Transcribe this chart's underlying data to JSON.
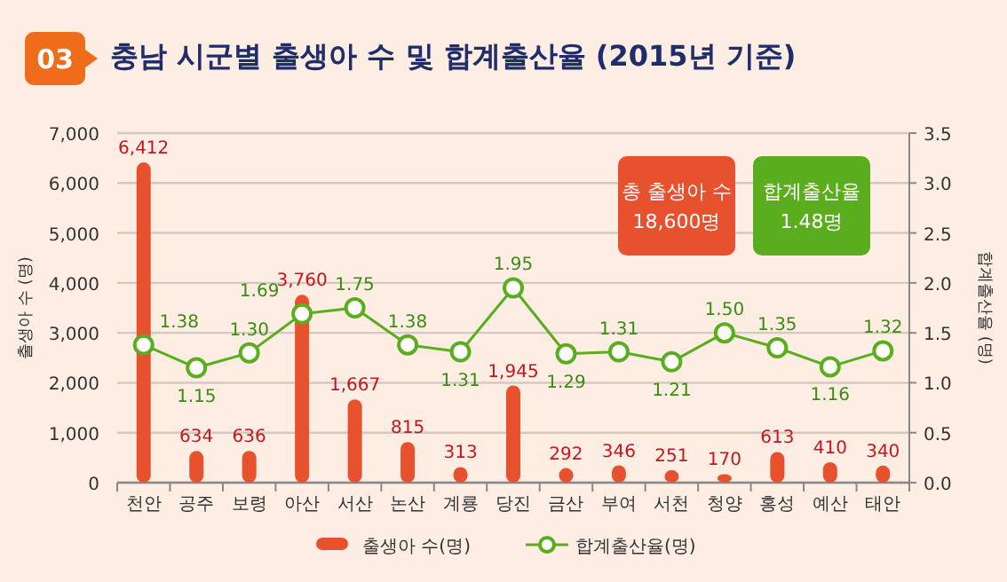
{
  "chart_data": {
    "type": "bar",
    "title": "충남 시군별 출생아 수 및 합계출산율 (2015년 기준)",
    "ylabel": "출생아 수 (명)",
    "y2label": "합계출산율 (명)",
    "categories": [
      "천안",
      "공주",
      "보령",
      "아산",
      "서산",
      "논산",
      "계룡",
      "당진",
      "금산",
      "부여",
      "서천",
      "청양",
      "홍성",
      "예산",
      "태안"
    ],
    "series": [
      {
        "name": "출생아 수(명)",
        "color": "#e8512e",
        "values": [
          6412,
          634,
          636,
          3760,
          1667,
          815,
          313,
          1945,
          292,
          346,
          251,
          170,
          613,
          410,
          340
        ],
        "value_labels": [
          "6,412",
          "634",
          "636",
          "3,760",
          "1,667",
          "815",
          "313",
          "1,945",
          "292",
          "346",
          "251",
          "170",
          "613",
          "410",
          "340"
        ]
      },
      {
        "name": "합계출산율(명)",
        "type": "line",
        "axis": "y2",
        "color": "#5aae1e",
        "marker": "circle",
        "values": [
          1.38,
          1.15,
          1.3,
          1.69,
          1.75,
          1.38,
          1.31,
          1.95,
          1.29,
          1.31,
          1.21,
          1.5,
          1.35,
          1.16,
          1.32
        ],
        "value_labels": [
          "1.38",
          "1.15",
          "1.30",
          "1.69",
          "1.75",
          "1.38",
          "1.31",
          "1.95",
          "1.29",
          "1.31",
          "1.21",
          "1.50",
          "1.35",
          "1.16",
          "1.32"
        ]
      }
    ],
    "ylim": [
      0,
      7000
    ],
    "yticks": [
      0,
      {
        "value": 1000,
        "label": "1,000"
      },
      {
        "value": 2000,
        "label": "2,000"
      },
      {
        "value": 3000,
        "label": "3,000"
      },
      {
        "value": 4000,
        "label": "4,000"
      },
      {
        "value": 5000,
        "label": "5,000"
      },
      {
        "value": 6000,
        "label": "6,000"
      },
      {
        "value": 7000,
        "label": "7,000"
      }
    ],
    "y2lim": [
      0,
      3.5
    ],
    "y2ticks": [
      {
        "value": 0,
        "label": "0.0"
      },
      {
        "value": 0.5,
        "label": "0.5"
      },
      {
        "value": 1,
        "label": "1.0"
      },
      {
        "value": 1.5,
        "label": "1.5"
      },
      {
        "value": 2,
        "label": "2.0"
      },
      {
        "value": 2.5,
        "label": "2.5"
      },
      {
        "value": 3,
        "label": "3.0"
      },
      {
        "value": 3.5,
        "label": "3.5"
      }
    ],
    "grid": "y",
    "legend": "bottom",
    "annotations": [
      "03",
      "총 출생아 수\n18,600명",
      "합계출산율\n1.48명"
    ]
  }
}
